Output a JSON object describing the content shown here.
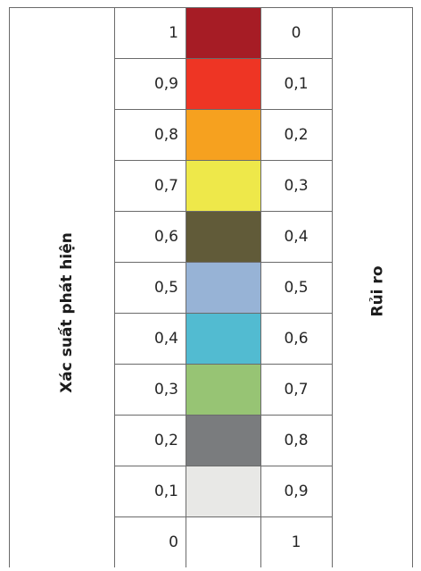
{
  "labels": {
    "left_axis": "Xác suất phát hiện",
    "right_axis": "Rủi ro"
  },
  "rows": [
    {
      "probability": "1",
      "risk": "0",
      "color": "#a61c25"
    },
    {
      "probability": "0,9",
      "risk": "0,1",
      "color": "#ee3524"
    },
    {
      "probability": "0,8",
      "risk": "0,2",
      "color": "#f6a11f"
    },
    {
      "probability": "0,7",
      "risk": "0,3",
      "color": "#eee84a"
    },
    {
      "probability": "0,6",
      "risk": "0,4",
      "color": "#615b39"
    },
    {
      "probability": "0,5",
      "risk": "0,5",
      "color": "#97b3d6"
    },
    {
      "probability": "0,4",
      "risk": "0,6",
      "color": "#52bbd1"
    },
    {
      "probability": "0,3",
      "risk": "0,7",
      "color": "#97c474"
    },
    {
      "probability": "0,2",
      "risk": "0,8",
      "color": "#7a7c7e"
    },
    {
      "probability": "0,1",
      "risk": "0,9",
      "color": "#e8e8e6"
    },
    {
      "probability": "0",
      "risk": "1",
      "color": "#ffffff"
    }
  ]
}
